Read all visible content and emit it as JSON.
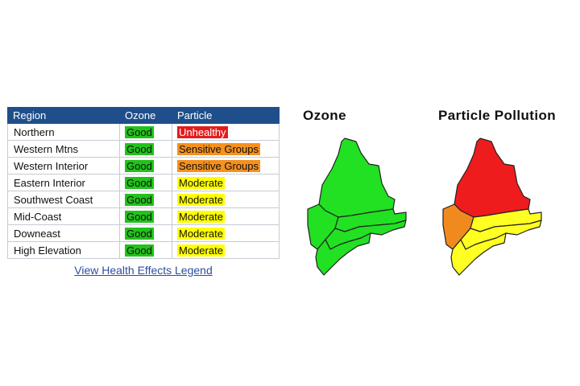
{
  "table": {
    "headers": {
      "region": "Region",
      "ozone": "Ozone",
      "particle": "Particle"
    },
    "rows": [
      {
        "region": "Northern",
        "ozone": "Good",
        "particle": "Unhealthy"
      },
      {
        "region": "Western Mtns",
        "ozone": "Good",
        "particle": "Sensitive Groups"
      },
      {
        "region": "Western Interior",
        "ozone": "Good",
        "particle": "Sensitive Groups"
      },
      {
        "region": "Eastern Interior",
        "ozone": "Good",
        "particle": "Moderate"
      },
      {
        "region": "Southwest Coast",
        "ozone": "Good",
        "particle": "Moderate"
      },
      {
        "region": "Mid-Coast",
        "ozone": "Good",
        "particle": "Moderate"
      },
      {
        "region": "Downeast",
        "ozone": "Good",
        "particle": "Moderate"
      },
      {
        "region": "High Elevation",
        "ozone": "Good",
        "particle": "Moderate"
      }
    ]
  },
  "legend_link": "View Health Effects Legend",
  "maps": {
    "ozone_title": "Ozone",
    "particle_title": "Particle Pollution",
    "ozone_regions": {
      "northern": "Good",
      "western": "Good",
      "interior": "Good",
      "coastal": "Good",
      "southern": "Good"
    },
    "particle_regions": {
      "northern": "Unhealthy",
      "western": "Sensitive Groups",
      "interior": "Moderate",
      "coastal": "Moderate",
      "southern": "Moderate"
    }
  },
  "colors": {
    "header_bg": "#1f4f8b",
    "Good": "#22c21a",
    "Moderate": "#ffff00",
    "Sensitive Groups": "#f5911e",
    "Unhealthy": "#e41c1c",
    "map_Good": "#22e022",
    "map_Moderate": "#ffff22",
    "map_Sensitive Groups": "#f08a1e",
    "map_Unhealthy": "#ee1c1c",
    "link": "#2b4f9e"
  }
}
